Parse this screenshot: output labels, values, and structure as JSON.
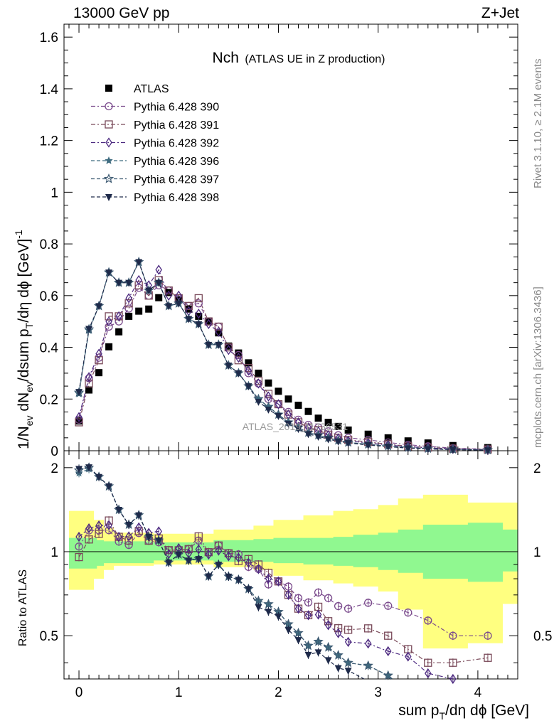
{
  "header": {
    "left": "13000 GeV pp",
    "right": "Z+Jet"
  },
  "side_labels": {
    "rivet": "Rivet 3.1.10, ≥ 2.1M events",
    "mcplots": "mcplots.cern.ch [arXiv:1306.3436]"
  },
  "chart_data": {
    "type": "scatter",
    "title_main": "Nch",
    "title_sub": "(ATLAS UE in Z production)",
    "watermark": "ATLAS_2019_I1736531",
    "xlabel": "sum p_T/dη dϕ [GeV]",
    "ylabel": "1/N_ev dN_ev/dsum p_T/dη dϕ [GeV]^-1",
    "ratio_ylabel": "Ratio to ATLAS",
    "xlim": [
      -0.15,
      4.4
    ],
    "ylim": [
      0,
      1.65
    ],
    "ratio_ylim": [
      0.35,
      2.3
    ],
    "x_ticks": [
      "0",
      "1",
      "2",
      "3",
      "4"
    ],
    "y_ticks": [
      "0",
      "0.2",
      "0.4",
      "0.6",
      "0.8",
      "1",
      "1.2",
      "1.4",
      "1.6"
    ],
    "ratio_ticks": [
      "0.5",
      "1",
      "2"
    ],
    "legend_position": "top-left",
    "x": [
      0.0,
      0.1,
      0.2,
      0.3,
      0.4,
      0.5,
      0.6,
      0.7,
      0.8,
      0.9,
      1.0,
      1.1,
      1.2,
      1.3,
      1.4,
      1.5,
      1.6,
      1.7,
      1.8,
      1.9,
      2.0,
      2.1,
      2.2,
      2.3,
      2.4,
      2.5,
      2.6,
      2.7,
      2.9,
      3.1,
      3.3,
      3.5,
      3.75,
      4.1
    ],
    "bands": {
      "inner": [
        [
          0.18,
          0.87,
          1.12
        ],
        [
          0.25,
          0.89,
          1.1
        ],
        [
          0.75,
          0.91,
          1.09
        ],
        [
          1.35,
          0.93,
          1.08
        ],
        [
          1.75,
          0.92,
          1.1
        ],
        [
          1.95,
          0.92,
          1.11
        ],
        [
          2.25,
          0.91,
          1.12
        ],
        [
          2.55,
          0.9,
          1.12
        ],
        [
          2.75,
          0.89,
          1.13
        ],
        [
          3.0,
          0.88,
          1.15
        ],
        [
          3.2,
          0.86,
          1.17
        ],
        [
          3.45,
          0.84,
          1.2
        ],
        [
          3.9,
          0.8,
          1.25
        ],
        [
          4.25,
          0.78,
          1.27
        ],
        [
          4.4,
          0.85,
          1.2
        ]
      ],
      "outer": [
        [
          0.15,
          0.73,
          1.4
        ],
        [
          0.25,
          0.8,
          1.3
        ],
        [
          0.35,
          0.86,
          1.22
        ],
        [
          0.75,
          0.89,
          1.17
        ],
        [
          1.35,
          0.9,
          1.16
        ],
        [
          1.75,
          0.88,
          1.2
        ],
        [
          1.95,
          0.86,
          1.24
        ],
        [
          2.25,
          0.82,
          1.3
        ],
        [
          2.55,
          0.79,
          1.35
        ],
        [
          2.75,
          0.77,
          1.4
        ],
        [
          3.0,
          0.75,
          1.42
        ],
        [
          3.2,
          0.72,
          1.47
        ],
        [
          3.45,
          0.62,
          1.55
        ],
        [
          3.9,
          0.45,
          1.6
        ],
        [
          4.25,
          0.47,
          1.5
        ],
        [
          4.4,
          0.65,
          1.5
        ]
      ]
    },
    "series": [
      {
        "name": "ATLAS",
        "marker": "square-filled",
        "dash": "",
        "color": "#000000",
        "y": [
          0.115,
          0.235,
          0.302,
          0.402,
          0.46,
          0.52,
          0.54,
          0.548,
          0.592,
          0.612,
          0.583,
          0.548,
          0.52,
          0.502,
          0.456,
          0.405,
          0.378,
          0.34,
          0.3,
          0.262,
          0.23,
          0.2,
          0.176,
          0.152,
          0.126,
          0.11,
          0.094,
          0.08,
          0.064,
          0.05,
          0.038,
          0.03,
          0.02,
          0.012
        ]
      },
      {
        "name": "Pythia 6.428 390",
        "marker": "circle-open",
        "dash": "6,3,2,3",
        "color": "#7a4a8c",
        "y": [
          0.12,
          0.28,
          0.36,
          0.48,
          0.5,
          0.55,
          0.63,
          0.6,
          0.64,
          0.62,
          0.59,
          0.56,
          0.57,
          0.5,
          0.48,
          0.4,
          0.37,
          0.3,
          0.26,
          0.2,
          0.18,
          0.15,
          0.12,
          0.1,
          0.09,
          0.075,
          0.06,
          0.05,
          0.042,
          0.032,
          0.023,
          0.017,
          0.01,
          0.006
        ]
      },
      {
        "name": "Pythia 6.428 391",
        "marker": "square-open",
        "dash": "6,3,2,3",
        "color": "#7a4a5a",
        "y": [
          0.11,
          0.26,
          0.35,
          0.52,
          0.52,
          0.57,
          0.64,
          0.6,
          0.66,
          0.62,
          0.59,
          0.56,
          0.59,
          0.5,
          0.48,
          0.4,
          0.35,
          0.32,
          0.27,
          0.22,
          0.18,
          0.14,
          0.11,
          0.09,
          0.08,
          0.062,
          0.05,
          0.042,
          0.034,
          0.025,
          0.017,
          0.012,
          0.008,
          0.005
        ]
      },
      {
        "name": "Pythia 6.428 392",
        "marker": "diamond-open",
        "dash": "6,3,2,3",
        "color": "#4d2a80",
        "y": [
          0.13,
          0.285,
          0.375,
          0.5,
          0.52,
          0.59,
          0.66,
          0.64,
          0.7,
          0.6,
          0.6,
          0.54,
          0.53,
          0.49,
          0.46,
          0.39,
          0.36,
          0.31,
          0.26,
          0.21,
          0.18,
          0.14,
          0.11,
          0.09,
          0.075,
          0.06,
          0.048,
          0.038,
          0.03,
          0.022,
          0.016,
          0.011,
          0.007,
          0.004
        ]
      },
      {
        "name": "Pythia 6.428 396",
        "marker": "star-filled",
        "dash": "5,3",
        "color": "#3f6c80",
        "y": [
          0.22,
          0.465,
          0.56,
          0.69,
          0.65,
          0.65,
          0.73,
          0.62,
          0.65,
          0.56,
          0.57,
          0.51,
          0.49,
          0.41,
          0.41,
          0.33,
          0.3,
          0.25,
          0.2,
          0.17,
          0.14,
          0.11,
          0.09,
          0.07,
          0.06,
          0.05,
          0.04,
          0.032,
          0.025,
          0.018,
          0.012,
          0.008,
          0.005,
          0.003
        ]
      },
      {
        "name": "Pythia 6.428 397",
        "marker": "star-open",
        "dash": "5,3",
        "color": "#3d5a72",
        "y": [
          0.225,
          0.47,
          0.56,
          0.69,
          0.65,
          0.65,
          0.73,
          0.62,
          0.65,
          0.56,
          0.57,
          0.51,
          0.49,
          0.41,
          0.41,
          0.33,
          0.3,
          0.25,
          0.2,
          0.17,
          0.14,
          0.11,
          0.09,
          0.07,
          0.06,
          0.05,
          0.04,
          0.032,
          0.025,
          0.018,
          0.012,
          0.008,
          0.005,
          0.003
        ]
      },
      {
        "name": "Pythia 6.428 398",
        "marker": "triangle-down-filled",
        "dash": "5,3",
        "color": "#1e2a4a",
        "y": [
          0.228,
          0.472,
          0.56,
          0.69,
          0.65,
          0.65,
          0.73,
          0.62,
          0.65,
          0.56,
          0.57,
          0.51,
          0.49,
          0.41,
          0.41,
          0.33,
          0.3,
          0.25,
          0.19,
          0.16,
          0.135,
          0.105,
          0.085,
          0.065,
          0.055,
          0.045,
          0.036,
          0.03,
          0.022,
          0.016,
          0.01,
          0.007,
          0.004,
          0.002
        ]
      }
    ]
  }
}
